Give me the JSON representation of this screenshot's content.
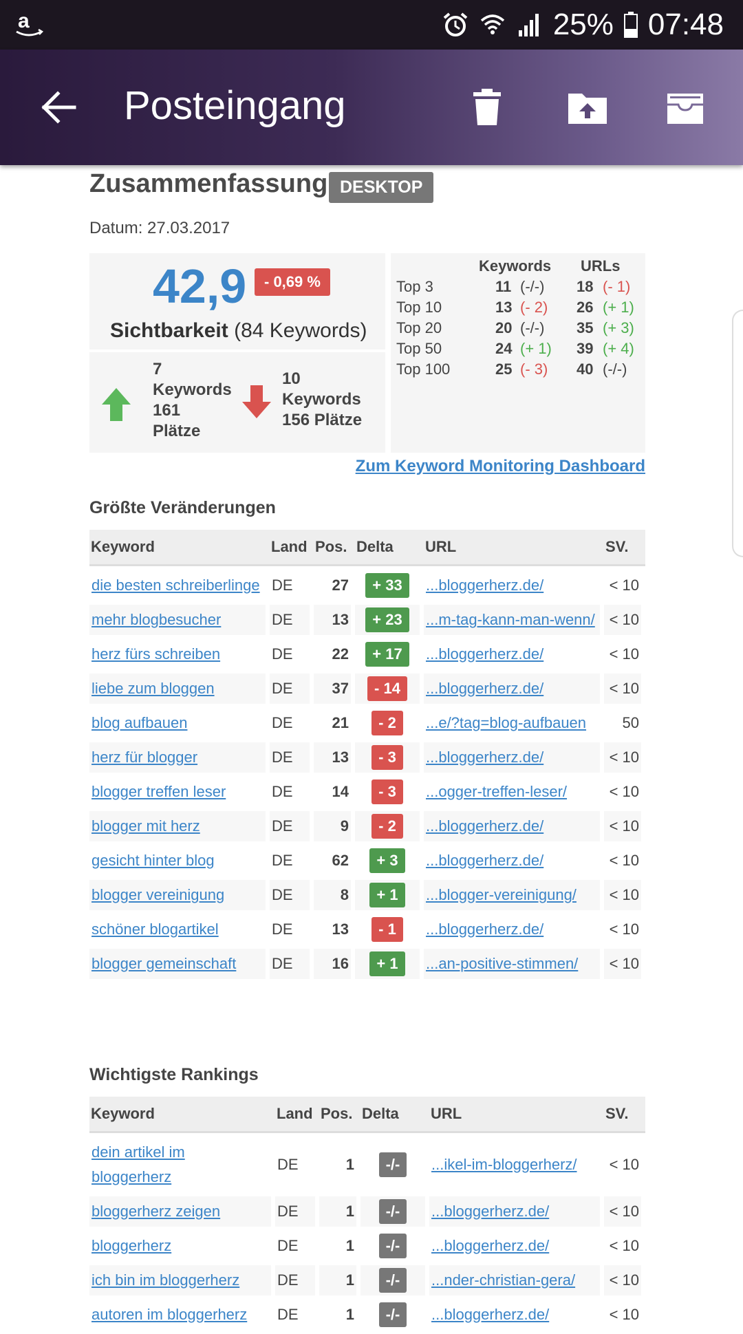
{
  "status_bar": {
    "battery": "25%",
    "time": "07:48",
    "icons": [
      "amazon-icon",
      "alarm-icon",
      "wifi-icon",
      "signal-icon",
      "battery-icon"
    ]
  },
  "app_bar": {
    "title": "Posteingang",
    "icons": [
      "back-arrow-icon",
      "trash-icon",
      "move-folder-icon",
      "archive-icon"
    ]
  },
  "summary": {
    "heading": "Zusammenfassung",
    "badge": "DESKTOP",
    "date": "Datum: 27.03.2017",
    "visibility_value": "42,9",
    "visibility_change": "- 0,69 %",
    "visibility_label": "Sichtbarkeit",
    "visibility_keywords": "(84 Keywords)",
    "up": {
      "count": "7",
      "keywords": "Keywords",
      "places": "161",
      "places_label": "Plätze"
    },
    "down": {
      "count": "10",
      "keywords": "Keywords",
      "places": "156 Plätze"
    },
    "tops_header": {
      "keywords": "Keywords",
      "urls": "URLs"
    },
    "tops": [
      {
        "label": "Top 3",
        "kw": "11",
        "kw_delta": "(-/-)",
        "kw_color": "neutral",
        "url": "18",
        "url_delta": "(- 1)",
        "url_color": "red"
      },
      {
        "label": "Top 10",
        "kw": "13",
        "kw_delta": "(- 2)",
        "kw_color": "red",
        "url": "26",
        "url_delta": "(+ 1)",
        "url_color": "green"
      },
      {
        "label": "Top 20",
        "kw": "20",
        "kw_delta": "(-/-)",
        "kw_color": "neutral",
        "url": "35",
        "url_delta": "(+ 3)",
        "url_color": "green"
      },
      {
        "label": "Top 50",
        "kw": "24",
        "kw_delta": "(+ 1)",
        "kw_color": "green",
        "url": "39",
        "url_delta": "(+ 4)",
        "url_color": "green"
      },
      {
        "label": "Top 100",
        "kw": "25",
        "kw_delta": "(- 3)",
        "kw_color": "red",
        "url": "40",
        "url_delta": "(-/-)",
        "url_color": "neutral"
      }
    ],
    "dashboard_link": "Zum Keyword Monitoring Dashboard"
  },
  "changes": {
    "heading": "Größte Veränderungen",
    "columns": [
      "Keyword",
      "Land",
      "Pos.",
      "Delta",
      "URL",
      "SV."
    ],
    "rows": [
      {
        "keyword": "die besten schreiberlinge",
        "land": "DE",
        "pos": "27",
        "delta": "+ 33",
        "dir": "up",
        "url": "...bloggerherz.de/",
        "sv": "< 10"
      },
      {
        "keyword": "mehr blogbesucher",
        "land": "DE",
        "pos": "13",
        "delta": "+ 23",
        "dir": "up",
        "url": "...m-tag-kann-man-wenn/",
        "sv": "< 10"
      },
      {
        "keyword": "herz fürs schreiben",
        "land": "DE",
        "pos": "22",
        "delta": "+ 17",
        "dir": "up",
        "url": "...bloggerherz.de/",
        "sv": "< 10"
      },
      {
        "keyword": "liebe zum bloggen",
        "land": "DE",
        "pos": "37",
        "delta": "- 14",
        "dir": "down",
        "url": "...bloggerherz.de/",
        "sv": "< 10"
      },
      {
        "keyword": "blog aufbauen",
        "land": "DE",
        "pos": "21",
        "delta": "- 2",
        "dir": "down",
        "url": "...e/?tag=blog-aufbauen",
        "sv": "50"
      },
      {
        "keyword": "herz für blogger",
        "land": "DE",
        "pos": "13",
        "delta": "- 3",
        "dir": "down",
        "url": "...bloggerherz.de/",
        "sv": "< 10"
      },
      {
        "keyword": "blogger treffen leser",
        "land": "DE",
        "pos": "14",
        "delta": "- 3",
        "dir": "down",
        "url": "...ogger-treffen-leser/",
        "sv": "< 10"
      },
      {
        "keyword": "blogger mit herz",
        "land": "DE",
        "pos": "9",
        "delta": "- 2",
        "dir": "down",
        "url": "...bloggerherz.de/",
        "sv": "< 10"
      },
      {
        "keyword": "gesicht hinter blog",
        "land": "DE",
        "pos": "62",
        "delta": "+ 3",
        "dir": "up",
        "url": "...bloggerherz.de/",
        "sv": "< 10"
      },
      {
        "keyword": "blogger vereinigung",
        "land": "DE",
        "pos": "8",
        "delta": "+ 1",
        "dir": "up",
        "url": "...blogger-vereinigung/",
        "sv": "< 10"
      },
      {
        "keyword": "schöner blogartikel",
        "land": "DE",
        "pos": "13",
        "delta": "- 1",
        "dir": "down",
        "url": "...bloggerherz.de/",
        "sv": "< 10"
      },
      {
        "keyword": "blogger gemeinschaft",
        "land": "DE",
        "pos": "16",
        "delta": "+ 1",
        "dir": "up",
        "url": "...an-positive-stimmen/",
        "sv": "< 10"
      }
    ]
  },
  "rankings": {
    "heading": "Wichtigste Rankings",
    "columns": [
      "Keyword",
      "Land",
      "Pos.",
      "Delta",
      "URL",
      "SV."
    ],
    "rows": [
      {
        "keyword": "dein artikel im bloggerherz",
        "land": "DE",
        "pos": "1",
        "delta": "-/-",
        "dir": "none",
        "url": "...ikel-im-bloggerherz/",
        "sv": "< 10"
      },
      {
        "keyword": "bloggerherz zeigen",
        "land": "DE",
        "pos": "1",
        "delta": "-/-",
        "dir": "none",
        "url": "...bloggerherz.de/",
        "sv": "< 10"
      },
      {
        "keyword": "bloggerherz",
        "land": "DE",
        "pos": "1",
        "delta": "-/-",
        "dir": "none",
        "url": "...bloggerherz.de/",
        "sv": "< 10"
      },
      {
        "keyword": "ich bin im bloggerherz",
        "land": "DE",
        "pos": "1",
        "delta": "-/-",
        "dir": "none",
        "url": "...nder-christian-gera/",
        "sv": "< 10"
      },
      {
        "keyword": "autoren im bloggerherz",
        "land": "DE",
        "pos": "1",
        "delta": "-/-",
        "dir": "none",
        "url": "...bloggerherz.de/",
        "sv": "< 10"
      }
    ]
  },
  "colors": {
    "accent_blue": "#3c85c8",
    "badge_green": "#4e9a4e",
    "badge_red": "#d9534f",
    "badge_gray": "#777777"
  }
}
